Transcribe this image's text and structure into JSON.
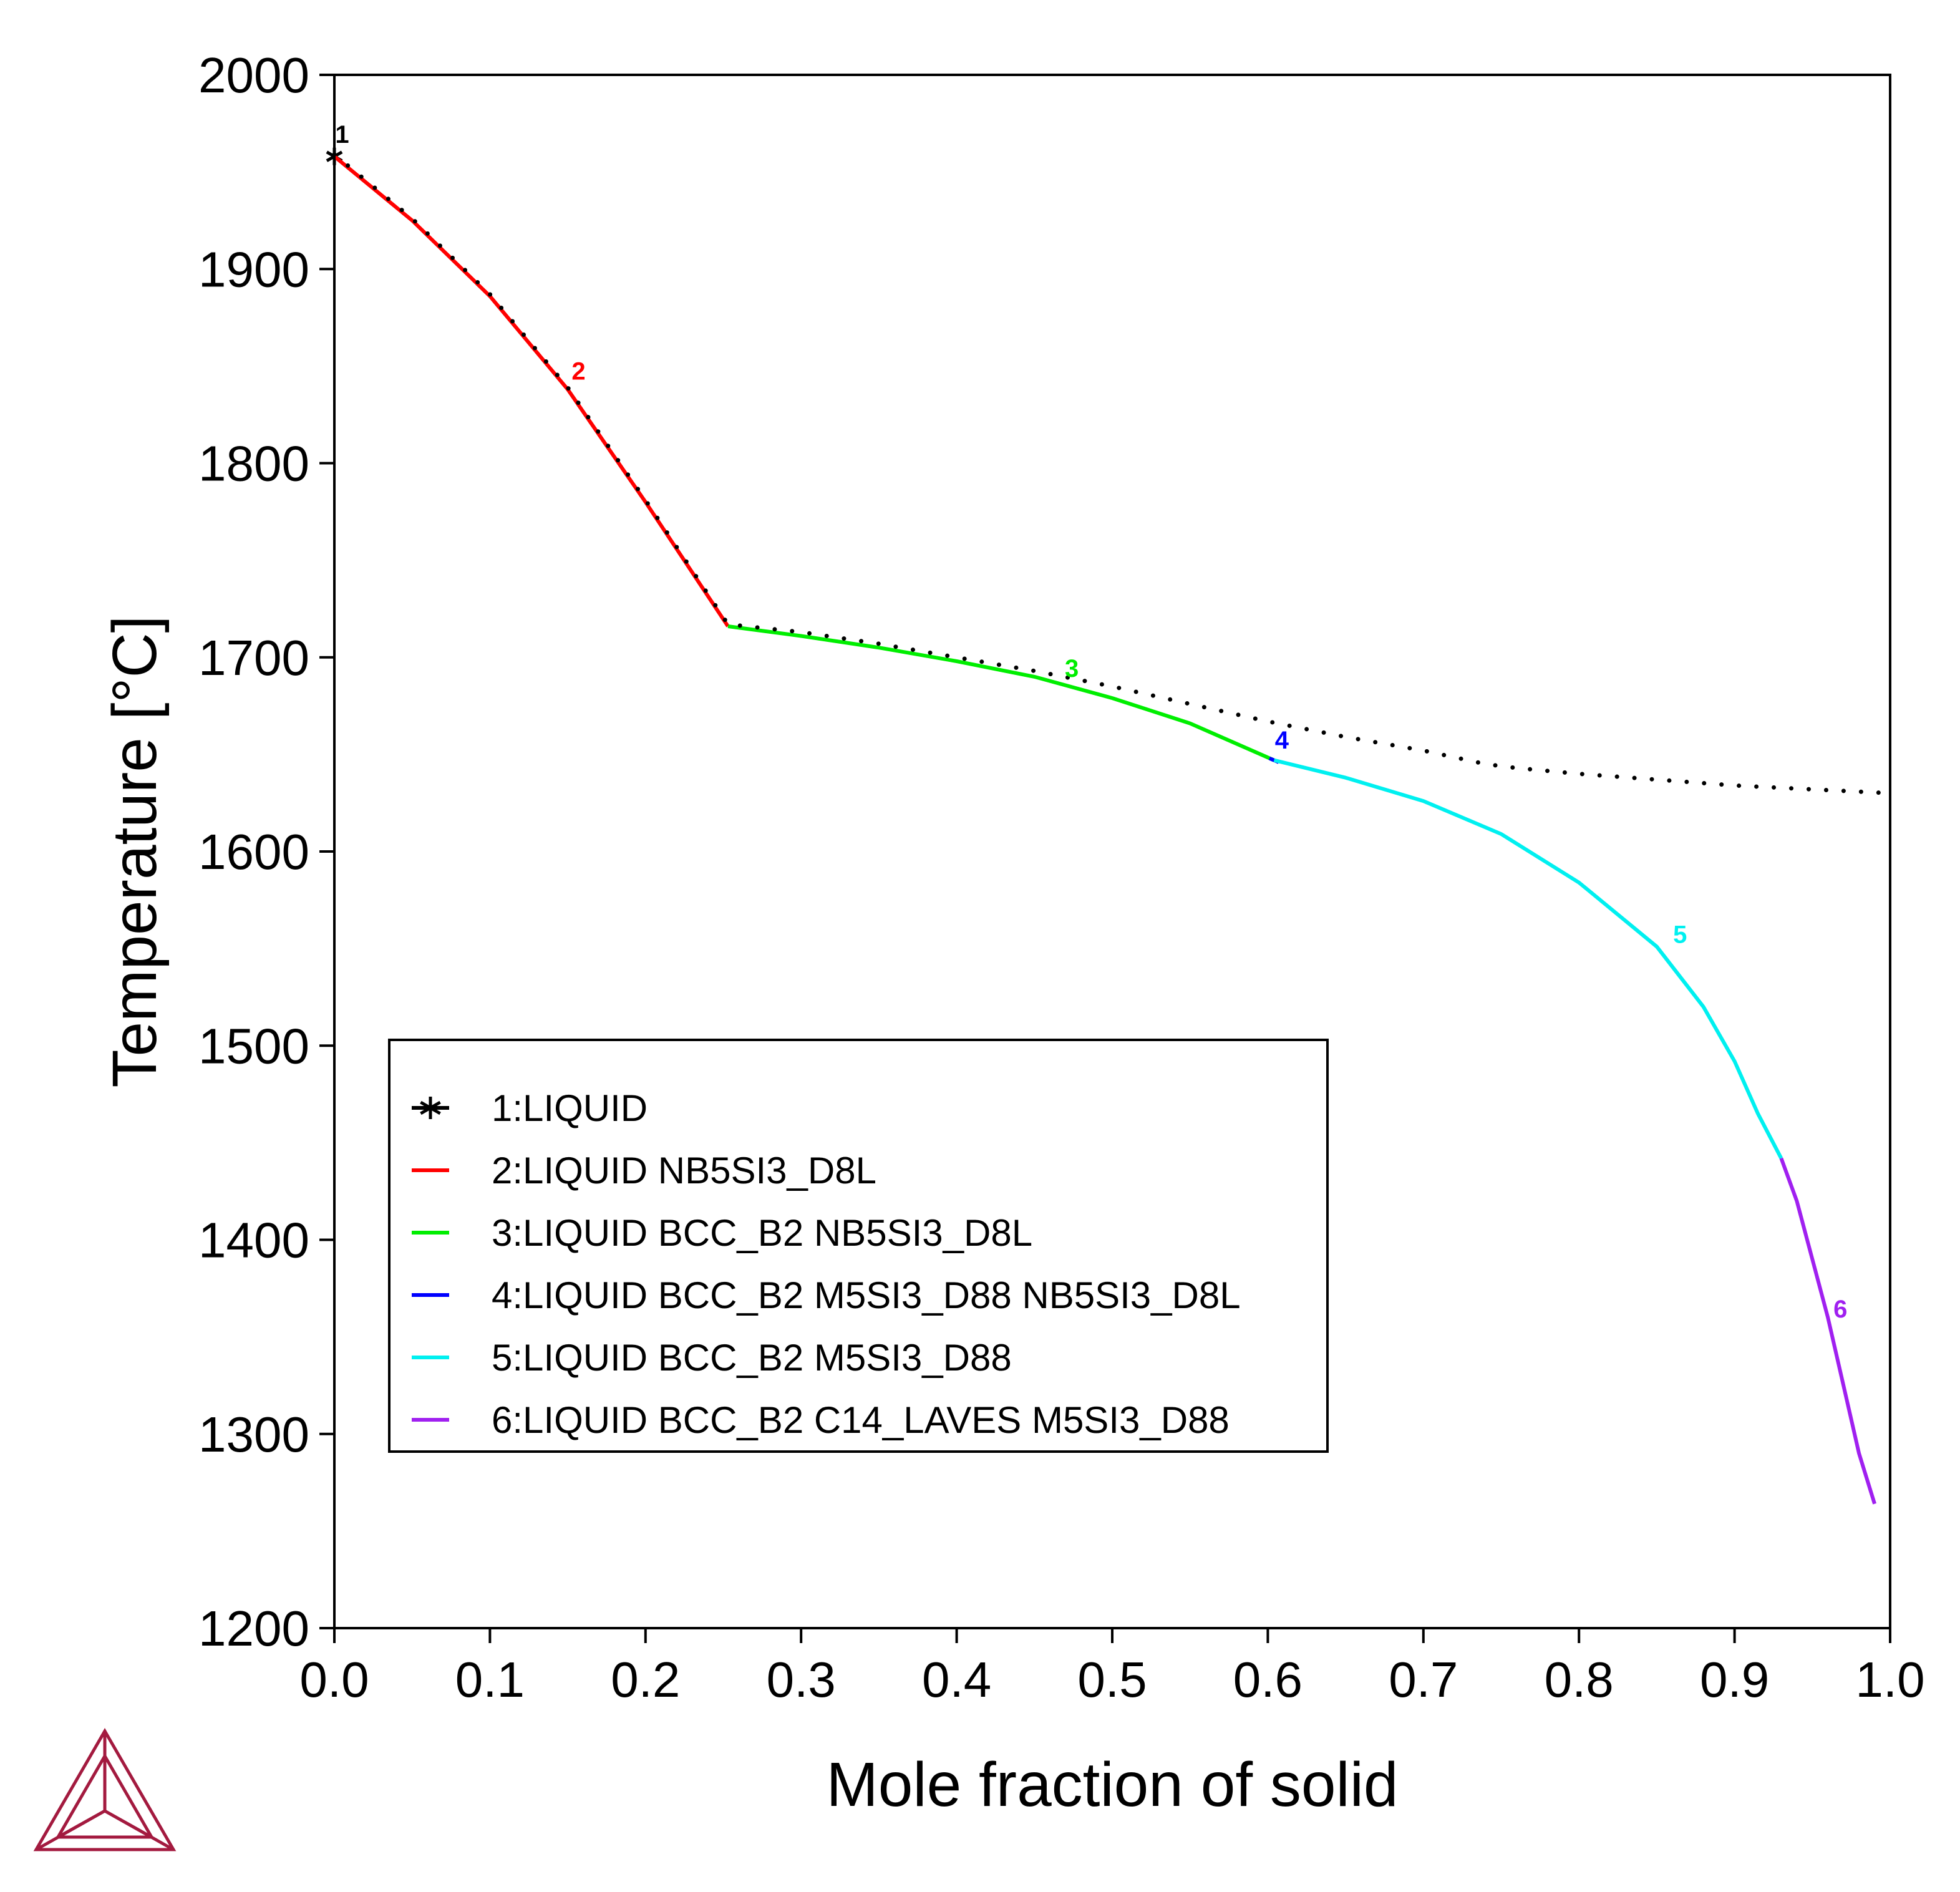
{
  "chart_data": {
    "type": "line",
    "xlabel": "Mole fraction of solid",
    "ylabel": "Temperature [°C]",
    "xlim": [
      0.0,
      1.0
    ],
    "ylim": [
      1200,
      2000
    ],
    "x_ticks": [
      "0.0",
      "0.1",
      "0.2",
      "0.3",
      "0.4",
      "0.5",
      "0.6",
      "0.7",
      "0.8",
      "0.9",
      "1.0"
    ],
    "y_ticks": [
      "1200",
      "1300",
      "1400",
      "1500",
      "1600",
      "1700",
      "1800",
      "1900",
      "2000"
    ],
    "legend_position": "lower-left",
    "series": [
      {
        "name": "1:LIQUID",
        "label": "1",
        "color": "#000000",
        "marker": "star",
        "label_at": {
          "x": 0.005,
          "y": 1965
        },
        "points": [
          [
            0.0,
            1958
          ]
        ]
      },
      {
        "name": "2:LIQUID NB5SI3_D8L",
        "label": "2",
        "color": "#ff0000",
        "label_at": {
          "x": 0.157,
          "y": 1843
        },
        "points": [
          [
            0.0,
            1958
          ],
          [
            0.05,
            1925
          ],
          [
            0.1,
            1886
          ],
          [
            0.15,
            1838
          ],
          [
            0.2,
            1780
          ],
          [
            0.253,
            1716
          ]
        ]
      },
      {
        "name": "3:LIQUID BCC_B2 NB5SI3_D8L",
        "label": "3",
        "color": "#00ee00",
        "label_at": {
          "x": 0.474,
          "y": 1690
        },
        "points": [
          [
            0.253,
            1716
          ],
          [
            0.3,
            1711
          ],
          [
            0.35,
            1705
          ],
          [
            0.4,
            1698
          ],
          [
            0.45,
            1690
          ],
          [
            0.5,
            1679
          ],
          [
            0.55,
            1666
          ],
          [
            0.604,
            1647
          ]
        ]
      },
      {
        "name": "4:LIQUID BCC_B2 M5SI3_D88 NB5SI3_D8L",
        "label": "4",
        "color": "#0000ff",
        "label_at": {
          "x": 0.609,
          "y": 1653
        },
        "points": [
          [
            0.601,
            1648
          ],
          [
            0.607,
            1646
          ]
        ]
      },
      {
        "name": "5:LIQUID BCC_B2 M5SI3_D88",
        "label": "5",
        "color": "#00f0f0",
        "label_at": {
          "x": 0.865,
          "y": 1553
        },
        "points": [
          [
            0.604,
            1647
          ],
          [
            0.65,
            1638
          ],
          [
            0.7,
            1626
          ],
          [
            0.75,
            1609
          ],
          [
            0.8,
            1584
          ],
          [
            0.85,
            1551
          ],
          [
            0.88,
            1520
          ],
          [
            0.9,
            1492
          ],
          [
            0.915,
            1465
          ],
          [
            0.93,
            1442
          ]
        ]
      },
      {
        "name": "6:LIQUID BCC_B2 C14_LAVES M5SI3_D88",
        "label": "6",
        "color": "#a020f0",
        "label_at": {
          "x": 0.968,
          "y": 1360
        },
        "points": [
          [
            0.93,
            1442
          ],
          [
            0.94,
            1420
          ],
          [
            0.95,
            1390
          ],
          [
            0.96,
            1360
          ],
          [
            0.97,
            1325
          ],
          [
            0.98,
            1290
          ],
          [
            0.99,
            1264
          ]
        ]
      },
      {
        "name": "",
        "color": "#000000",
        "style": "dotted",
        "points": [
          [
            0.0,
            1959
          ],
          [
            0.05,
            1926
          ],
          [
            0.1,
            1887
          ],
          [
            0.15,
            1839
          ],
          [
            0.2,
            1781
          ],
          [
            0.253,
            1717
          ],
          [
            0.3,
            1713
          ],
          [
            0.35,
            1707
          ],
          [
            0.4,
            1700
          ],
          [
            0.45,
            1693
          ],
          [
            0.5,
            1685
          ],
          [
            0.55,
            1676
          ],
          [
            0.6,
            1667
          ],
          [
            0.65,
            1659
          ],
          [
            0.7,
            1652
          ],
          [
            0.74,
            1645
          ],
          [
            0.76,
            1643
          ],
          [
            0.8,
            1640
          ],
          [
            0.85,
            1637
          ],
          [
            0.9,
            1634
          ],
          [
            0.95,
            1632
          ],
          [
            1.0,
            1630
          ]
        ]
      }
    ]
  }
}
